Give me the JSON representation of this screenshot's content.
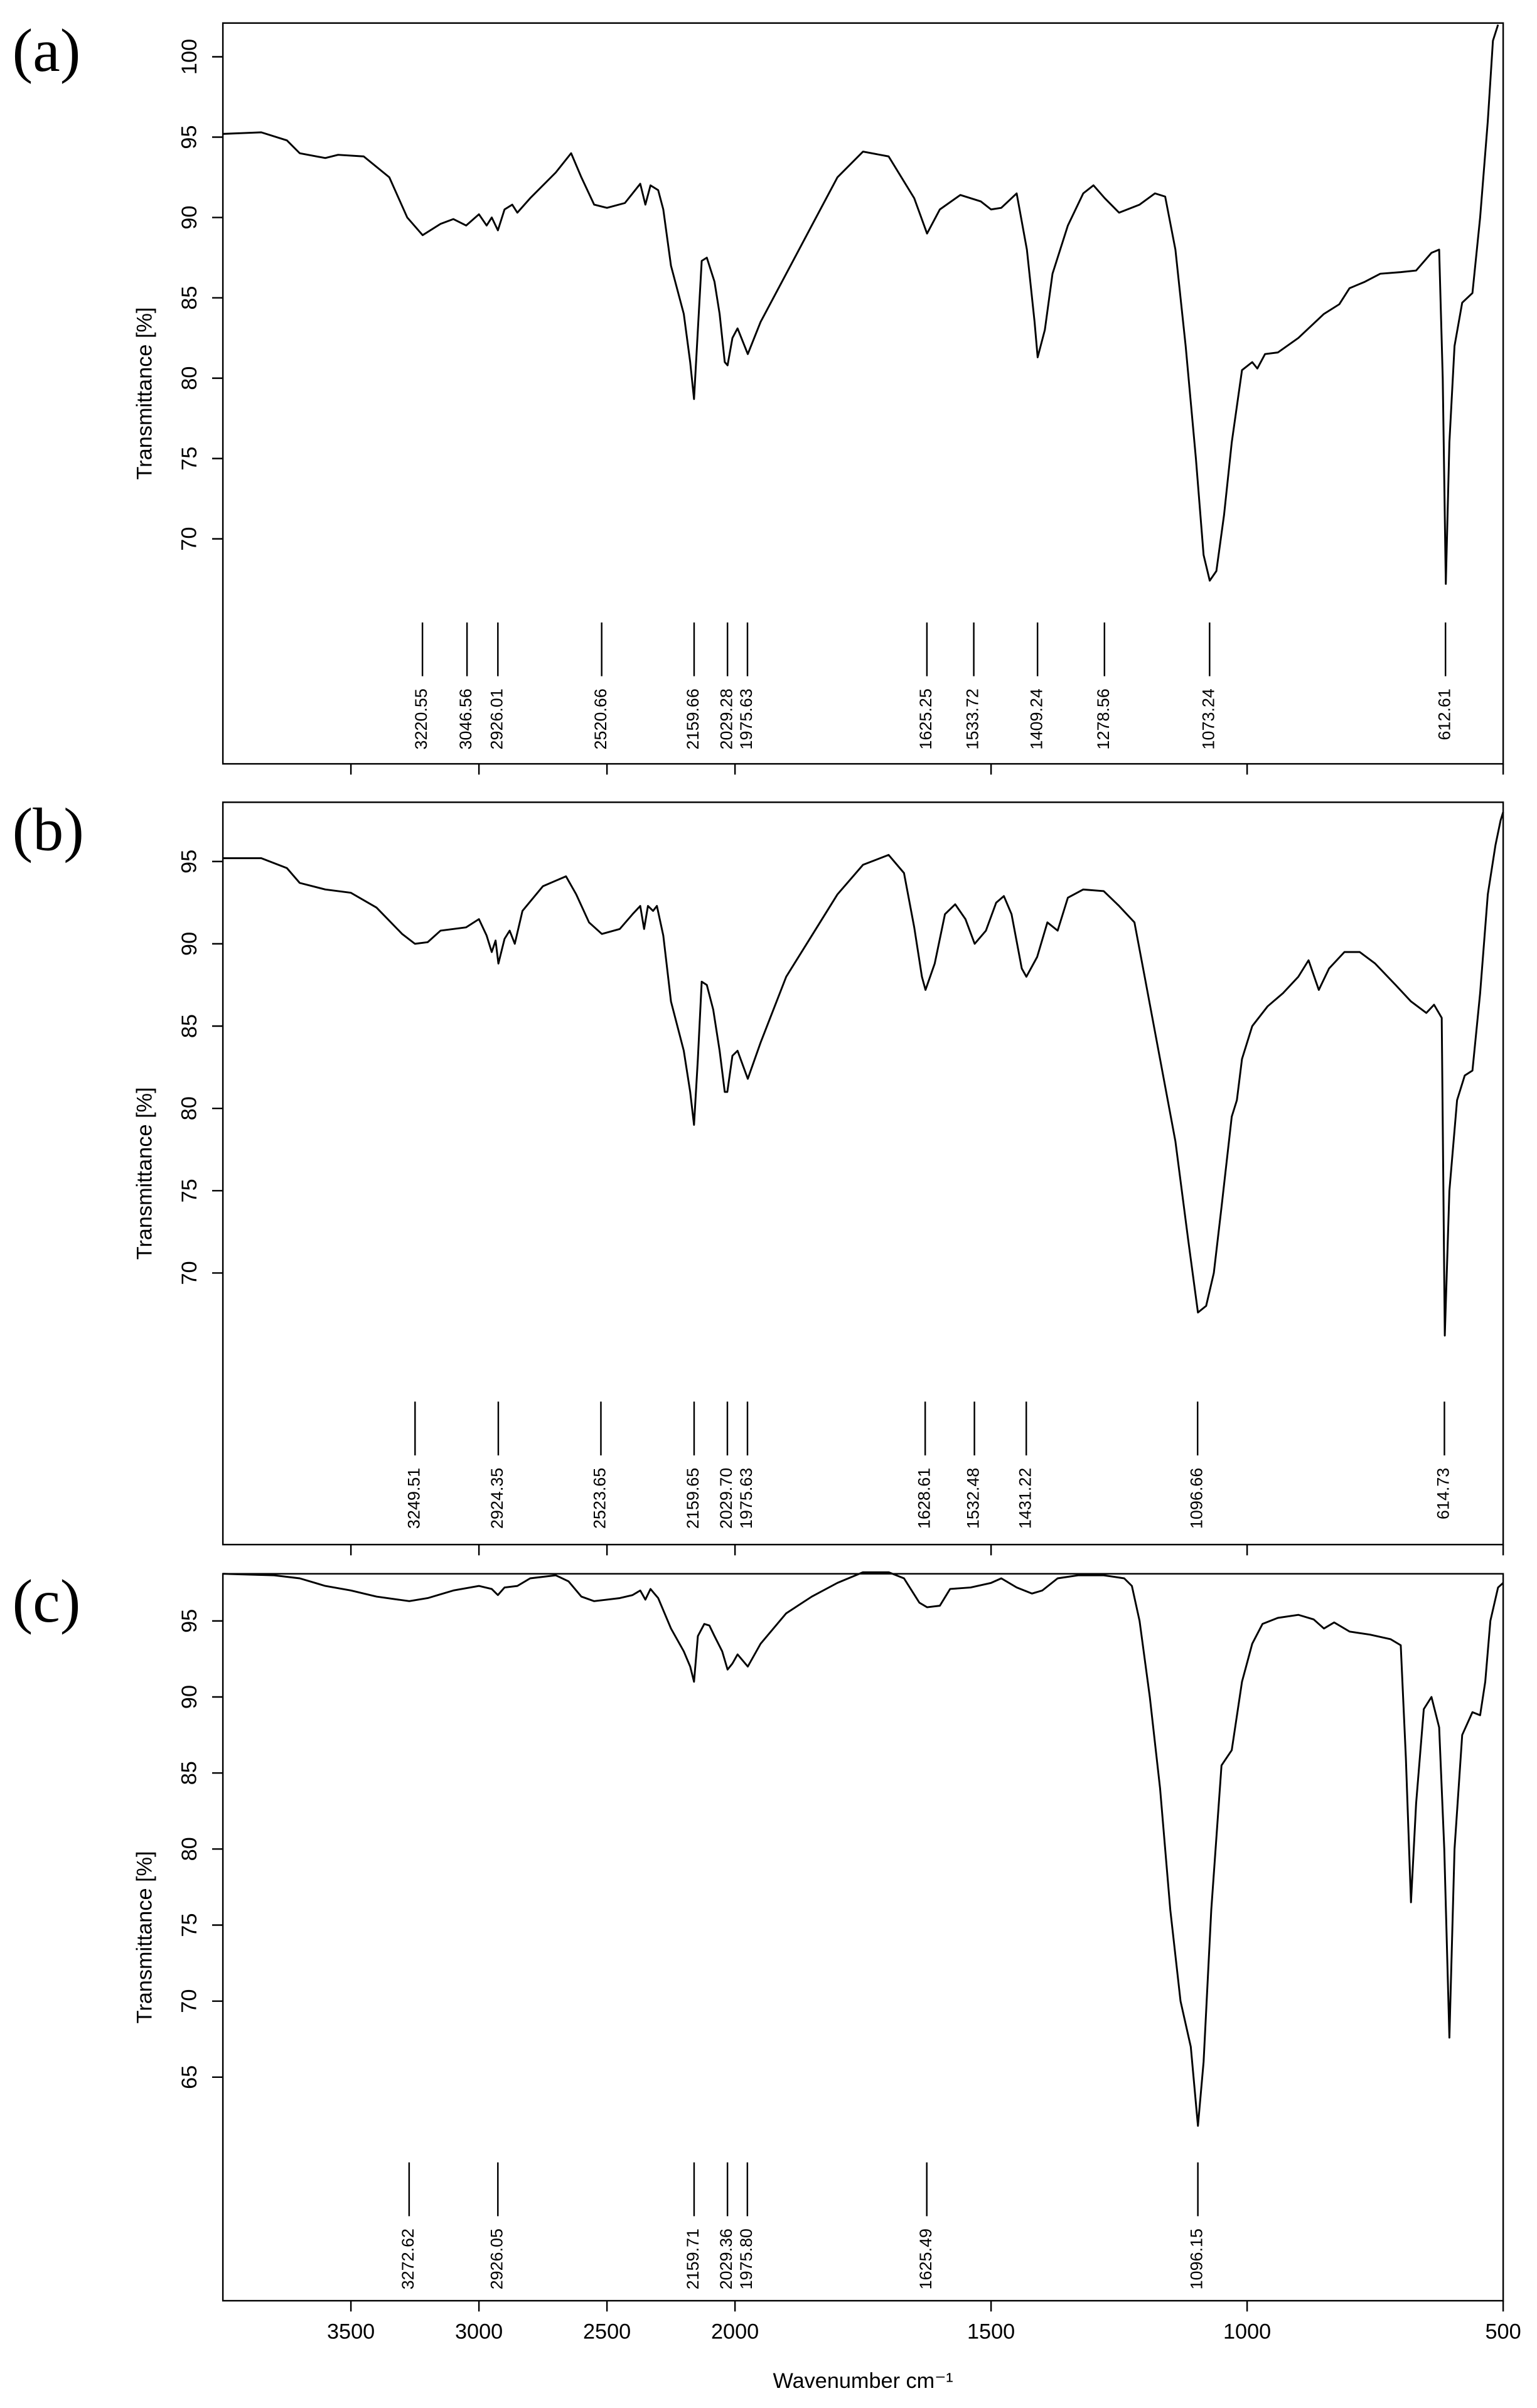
{
  "chart_data": [
    {
      "type": "line",
      "label": "(a)",
      "y_label": "Transmittance [%]",
      "xlim": [
        4000,
        500
      ],
      "x_scale_break": 2000,
      "x_scale_factor": 2,
      "xticks": [
        3500,
        3000,
        2500,
        2000,
        1500,
        1000,
        500
      ],
      "ylim": [
        56,
        102.1
      ],
      "yticks": [
        70,
        75,
        80,
        85,
        90,
        95,
        100
      ],
      "x": [
        4000,
        3850,
        3750,
        3700,
        3600,
        3550,
        3450,
        3350,
        3280,
        3220,
        3150,
        3100,
        3050,
        3000,
        2970,
        2950,
        2926,
        2900,
        2870,
        2850,
        2800,
        2700,
        2640,
        2600,
        2550,
        2500,
        2430,
        2400,
        2370,
        2350,
        2330,
        2300,
        2280,
        2250,
        2200,
        2175,
        2160,
        2145,
        2130,
        2110,
        2080,
        2060,
        2040,
        2029,
        2010,
        1995,
        1975,
        1950,
        1900,
        1850,
        1800,
        1750,
        1700,
        1650,
        1625,
        1600,
        1560,
        1520,
        1500,
        1480,
        1450,
        1430,
        1415,
        1409,
        1395,
        1380,
        1350,
        1320,
        1300,
        1278,
        1250,
        1210,
        1180,
        1160,
        1140,
        1120,
        1100,
        1085,
        1073,
        1060,
        1045,
        1030,
        1010,
        990,
        980,
        965,
        940,
        900,
        850,
        820,
        800,
        770,
        740,
        700,
        670,
        640,
        625,
        618,
        612,
        605,
        595,
        580,
        560,
        545,
        530,
        520,
        510
      ],
      "series": [
        {
          "color": "#000000",
          "values": [
            95.2,
            95.3,
            94.8,
            94,
            93.7,
            93.9,
            93.8,
            92.5,
            90,
            88.9,
            89.6,
            89.9,
            89.5,
            90.2,
            89.5,
            90,
            89.2,
            90.5,
            90.8,
            90.3,
            91.2,
            92.8,
            94,
            92.5,
            90.8,
            90.6,
            90.9,
            91.5,
            92.1,
            90.8,
            92,
            91.7,
            90.5,
            87,
            84,
            81,
            78.7,
            83,
            87.3,
            87.5,
            86,
            84,
            81,
            80.8,
            82.5,
            83.1,
            81.5,
            83.5,
            86.5,
            89.5,
            92.5,
            94.1,
            93.8,
            91.2,
            89,
            90.5,
            91.4,
            91,
            90.5,
            90.6,
            91.5,
            88,
            83.5,
            81.3,
            83,
            86.5,
            89.5,
            91.5,
            92,
            91.2,
            90.3,
            90.8,
            91.5,
            91.3,
            88,
            82,
            75,
            69,
            67.4,
            68,
            71.5,
            76,
            80.5,
            81,
            80.6,
            81.5,
            81.6,
            82.5,
            84,
            84.6,
            85.6,
            86,
            86.5,
            86.6,
            86.7,
            87.8,
            88,
            80,
            67.2,
            76,
            82,
            84.7,
            85.3,
            90,
            96,
            101,
            102
          ]
        }
      ],
      "peaks": [
        3220.55,
        3046.56,
        2926.01,
        2520.66,
        2159.66,
        2029.28,
        1975.63,
        1625.25,
        1533.72,
        1409.24,
        1278.56,
        1073.24,
        612.61
      ]
    },
    {
      "type": "line",
      "label": "(b)",
      "y_label": "Transmittance [%]",
      "xlim": [
        4000,
        500
      ],
      "x_scale_break": 2000,
      "x_scale_factor": 2,
      "xticks": [
        3500,
        3000,
        2500,
        2000,
        1500,
        1000,
        500
      ],
      "ylim": [
        53.5,
        98.6
      ],
      "yticks": [
        70,
        75,
        80,
        85,
        90,
        95
      ],
      "x": [
        4000,
        3850,
        3750,
        3700,
        3600,
        3500,
        3400,
        3300,
        3250,
        3200,
        3150,
        3050,
        3000,
        2970,
        2950,
        2935,
        2924,
        2900,
        2880,
        2860,
        2830,
        2750,
        2660,
        2620,
        2570,
        2520,
        2450,
        2400,
        2370,
        2355,
        2340,
        2320,
        2305,
        2280,
        2250,
        2200,
        2175,
        2160,
        2145,
        2130,
        2110,
        2085,
        2060,
        2040,
        2030,
        2010,
        1995,
        1975,
        1950,
        1900,
        1850,
        1800,
        1750,
        1700,
        1670,
        1650,
        1635,
        1628,
        1610,
        1590,
        1570,
        1550,
        1532,
        1510,
        1490,
        1475,
        1460,
        1440,
        1431,
        1410,
        1390,
        1370,
        1350,
        1320,
        1280,
        1250,
        1220,
        1200,
        1170,
        1140,
        1115,
        1096,
        1080,
        1065,
        1050,
        1030,
        1020,
        1010,
        990,
        960,
        930,
        900,
        880,
        860,
        840,
        810,
        780,
        750,
        710,
        680,
        650,
        635,
        620,
        614,
        605,
        590,
        575,
        560,
        545,
        530,
        515,
        505,
        500
      ],
      "series": [
        {
          "color": "#000000",
          "values": [
            95.2,
            95.2,
            94.6,
            93.7,
            93.3,
            93.1,
            92.2,
            90.6,
            90,
            90.1,
            90.8,
            91,
            91.5,
            90.5,
            89.5,
            90.2,
            88.8,
            90.3,
            90.8,
            90,
            92,
            93.5,
            94.1,
            93,
            91.3,
            90.6,
            90.9,
            91.8,
            92.3,
            90.9,
            92.3,
            92,
            92.3,
            90.5,
            86.5,
            83.5,
            81,
            79,
            83,
            87.7,
            87.5,
            86,
            83.5,
            81,
            81,
            83.2,
            83.5,
            81.8,
            84,
            88,
            90.5,
            93,
            94.8,
            95.4,
            94.3,
            91,
            88,
            87.2,
            88.8,
            91.8,
            92.4,
            91.5,
            90,
            90.8,
            92.5,
            92.9,
            91.8,
            88.5,
            88,
            89.2,
            91.3,
            90.8,
            92.8,
            93.3,
            93.2,
            92.3,
            91.3,
            88,
            83,
            78,
            72,
            67.6,
            68,
            70,
            74,
            79.5,
            80.5,
            83,
            85,
            86.2,
            87,
            88,
            89,
            87.2,
            88.5,
            89.5,
            89.5,
            88.8,
            87.5,
            86.5,
            85.8,
            86.3,
            85.5,
            66.2,
            75,
            80.5,
            82,
            82.3,
            87,
            93,
            96,
            97.5,
            98
          ]
        }
      ],
      "peaks": [
        3249.51,
        2924.35,
        2523.65,
        2159.65,
        {
          "value": 2029.7,
          "label": "2029.70"
        },
        1975.63,
        1628.61,
        1532.48,
        1431.22,
        1096.66,
        614.73
      ]
    },
    {
      "type": "line",
      "label": "(c)",
      "y_label": "Transmittance [%]",
      "x_label": "Wavenumber cm⁻¹",
      "xlim": [
        4000,
        500
      ],
      "x_scale_break": 2000,
      "x_scale_factor": 2,
      "xticks": [
        3500,
        3000,
        2500,
        2000,
        1500,
        1000,
        500
      ],
      "ylim": [
        50.3,
        98.1
      ],
      "yticks": [
        65,
        70,
        75,
        80,
        85,
        90,
        95
      ],
      "x": [
        4000,
        3800,
        3700,
        3600,
        3500,
        3400,
        3272,
        3200,
        3100,
        3000,
        2950,
        2926,
        2900,
        2850,
        2800,
        2700,
        2650,
        2600,
        2550,
        2500,
        2450,
        2400,
        2370,
        2350,
        2330,
        2300,
        2250,
        2200,
        2175,
        2160,
        2145,
        2120,
        2100,
        2080,
        2050,
        2029,
        2010,
        1995,
        1975,
        1950,
        1900,
        1850,
        1800,
        1750,
        1700,
        1670,
        1640,
        1625,
        1600,
        1580,
        1540,
        1500,
        1480,
        1450,
        1420,
        1400,
        1370,
        1330,
        1280,
        1240,
        1225,
        1210,
        1190,
        1170,
        1150,
        1130,
        1110,
        1096,
        1085,
        1070,
        1050,
        1030,
        1010,
        990,
        970,
        940,
        900,
        870,
        850,
        830,
        800,
        760,
        720,
        700,
        690,
        680,
        670,
        655,
        640,
        625,
        615,
        605,
        595,
        580,
        560,
        545,
        535,
        525,
        510,
        500
      ],
      "series": [
        {
          "color": "#000000",
          "values": [
            98.1,
            98,
            97.8,
            97.3,
            97,
            96.6,
            96.3,
            96.5,
            97,
            97.3,
            97.1,
            96.7,
            97.2,
            97.3,
            97.8,
            98,
            97.6,
            96.6,
            96.3,
            96.4,
            96.5,
            96.7,
            97,
            96.4,
            97.1,
            96.5,
            94.5,
            93,
            92,
            91,
            94,
            94.8,
            94.7,
            94,
            93,
            91.8,
            92.2,
            92.8,
            92,
            93.5,
            95.5,
            96.6,
            97.5,
            98.2,
            98.2,
            97.8,
            96.2,
            95.9,
            96,
            97.1,
            97.2,
            97.5,
            97.8,
            97.2,
            96.8,
            97,
            97.8,
            98,
            98,
            97.8,
            97.3,
            95,
            90,
            84,
            76,
            70,
            67,
            61.8,
            66,
            76,
            85.5,
            86.5,
            91,
            93.5,
            94.8,
            95.2,
            95.4,
            95.1,
            94.5,
            94.9,
            94.3,
            94.1,
            93.8,
            93.4,
            86,
            76.5,
            83,
            89.2,
            90,
            88,
            80,
            67.6,
            80,
            87.5,
            89,
            88.8,
            91,
            95,
            97.2,
            97.5
          ]
        }
      ],
      "peaks": [
        3272.62,
        2926.05,
        2159.71,
        2029.36,
        {
          "value": 1975.8,
          "label": "1975.80"
        },
        1625.49,
        1096.15
      ]
    }
  ]
}
